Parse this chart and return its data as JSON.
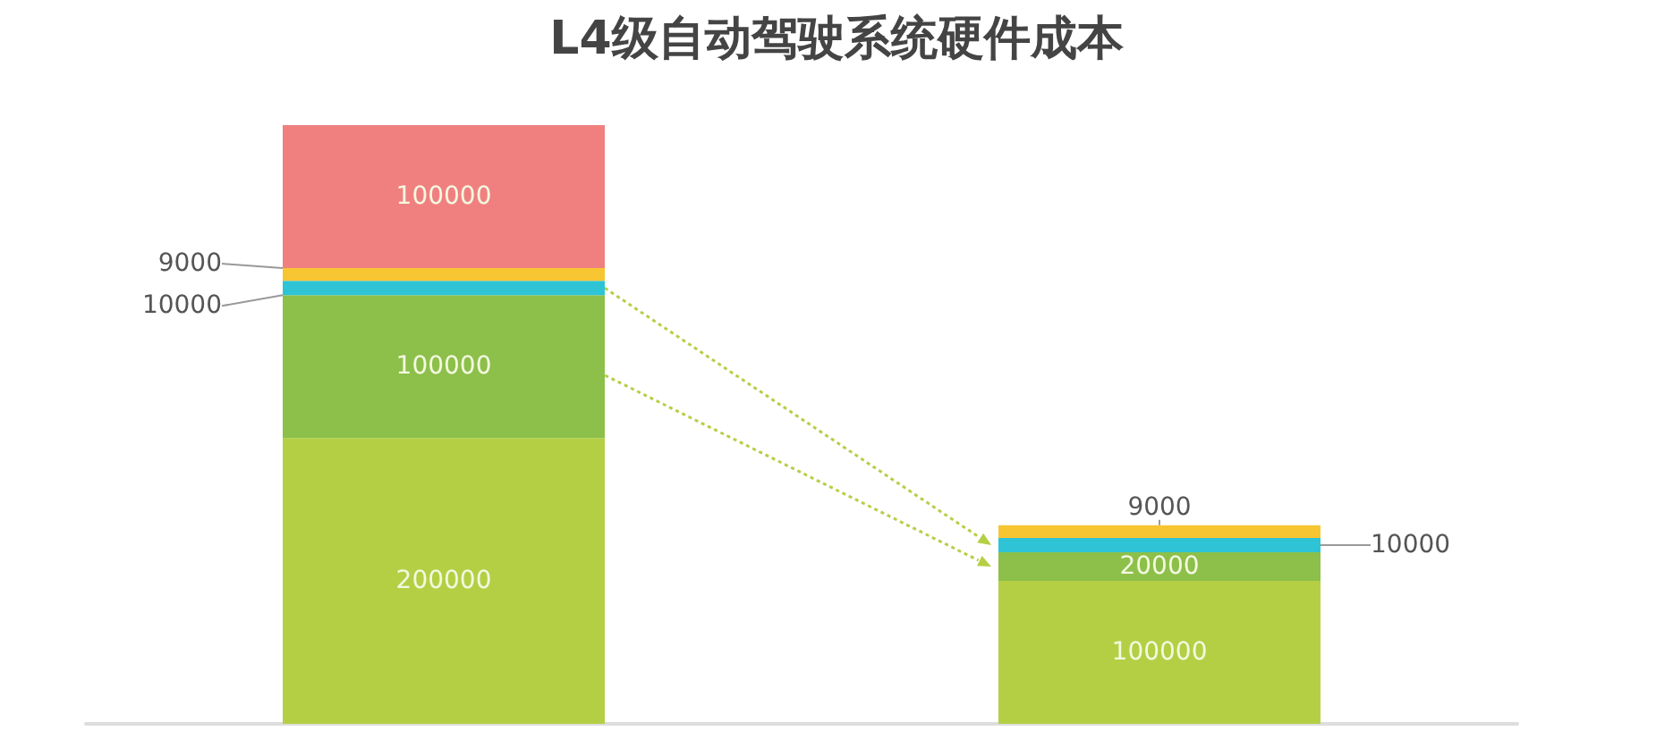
{
  "chart_data": {
    "type": "bar",
    "title": "L4级自动驾驶系统硬件成本",
    "categories": [
      null,
      null
    ],
    "stacked": true,
    "data_labels": true,
    "series": [
      {
        "color": "#b5cf45",
        "values": [
          200000,
          100000
        ]
      },
      {
        "color": "#8cc04a",
        "values": [
          100000,
          20000
        ]
      },
      {
        "color": "#2ec4d6",
        "values": [
          10000,
          10000
        ]
      },
      {
        "color": "#f7c531",
        "values": [
          9000,
          9000
        ]
      },
      {
        "color": "#f08080",
        "values": [
          100000,
          null
        ]
      }
    ]
  }
}
